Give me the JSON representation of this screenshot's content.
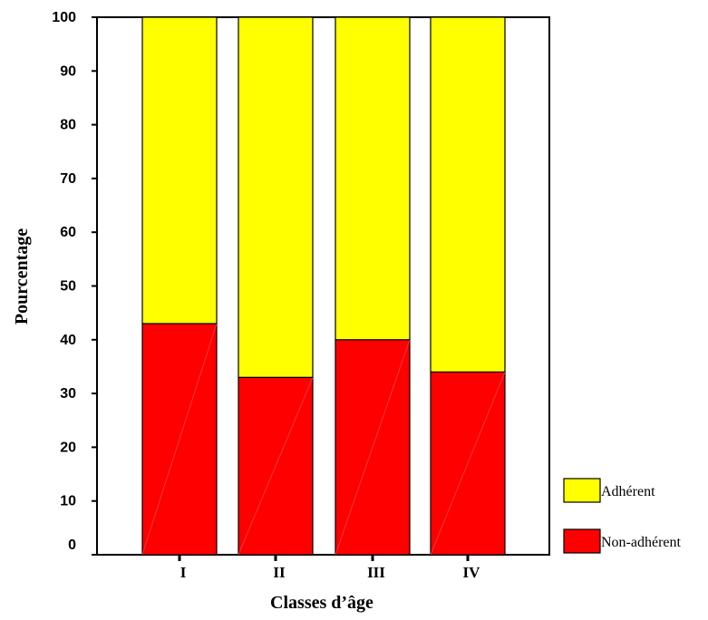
{
  "chart_data": {
    "type": "bar",
    "stacked": true,
    "categories": [
      "I",
      "II",
      "III",
      "IV"
    ],
    "series": [
      {
        "name": "Non-adhérent",
        "values": [
          43,
          33,
          40,
          34
        ],
        "color": "#ff0000"
      },
      {
        "name": "Adhérent",
        "values": [
          57,
          67,
          60,
          66
        ],
        "color": "#ffff00"
      }
    ],
    "xlabel": "Classes d’âge",
    "ylabel": "Pourcentage",
    "ylim": [
      0,
      100
    ],
    "yticks": [
      0,
      10,
      20,
      30,
      40,
      50,
      60,
      70,
      80,
      90,
      100
    ],
    "grid": false,
    "legend_position": "bottom-right",
    "legend_order": [
      "Adhérent",
      "Non-adhérent"
    ]
  }
}
